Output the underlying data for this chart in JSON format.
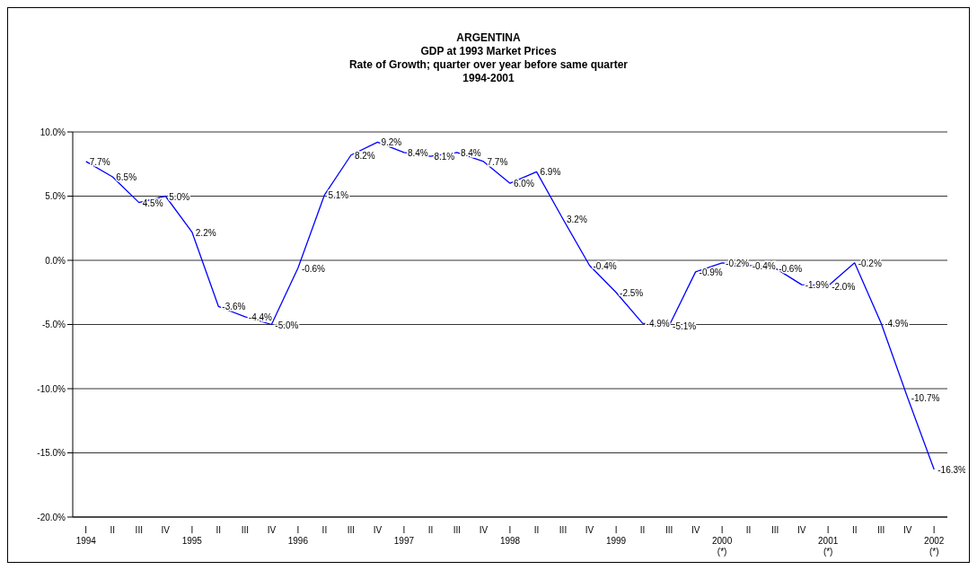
{
  "chart_data": {
    "type": "line",
    "title": "ARGENTINA\nGDP at 1993 Market Prices\nRate of Growth; quarter over year before same quarter\n1994-2001",
    "categories": [
      "I\n1994",
      "II",
      "III",
      "IV",
      "I\n1995",
      "II",
      "III",
      "IV",
      "I\n1996",
      "II",
      "III",
      "IV",
      "I\n1997",
      "II",
      "III",
      "IV",
      "I\n1998",
      "II",
      "III",
      "IV",
      "I\n1999",
      "II",
      "III",
      "IV",
      "I\n2000\n(*)",
      "II",
      "III",
      "IV",
      "I\n2001\n(*)",
      "II",
      "III",
      "IV",
      "I\n2002\n(*)"
    ],
    "series": [
      {
        "color": "#0000ff",
        "values": [
          7.7,
          6.5,
          4.5,
          5.0,
          2.2,
          -3.6,
          -4.4,
          -5.0,
          -0.6,
          5.1,
          8.2,
          9.2,
          8.4,
          8.1,
          8.4,
          7.7,
          6.0,
          6.9,
          3.2,
          -0.4,
          -2.5,
          -4.9,
          -5.1,
          -0.9,
          -0.2,
          -0.4,
          -0.6,
          -1.9,
          -2.0,
          -0.2,
          -4.9,
          -10.7,
          -16.3
        ],
        "value_labels": [
          "7.7%",
          "6.5%",
          "4.5%",
          "5.0%",
          "2.2%",
          "-3.6%",
          "-4.4%",
          "-5.0%",
          "-0.6%",
          "5.1%",
          "8.2%",
          "9.2%",
          "8.4%",
          "8.1%",
          "8.4%",
          "7.7%",
          "6.0%",
          "6.9%",
          "3.2%",
          "-0.4%",
          "-2.5%",
          "-4.9%",
          "-5.1%",
          "-0.9%",
          "-0.2%",
          "-0.4%",
          "-0.6%",
          "-1.9%",
          "-2.0%",
          "-0.2%",
          "-4.9%",
          "-10.7%",
          "-16.3%"
        ]
      }
    ],
    "ylim": [
      -20,
      10
    ],
    "yticks": [
      {
        "value": -20,
        "label": "-20.0%"
      },
      {
        "value": -15,
        "label": "-15.0%"
      },
      {
        "value": -10,
        "label": "-10.0%"
      },
      {
        "value": -5,
        "label": "-5.0%"
      },
      {
        "value": 0,
        "label": "0.0%"
      },
      {
        "value": 5,
        "label": "5.0%"
      },
      {
        "value": 10,
        "label": "10.0%"
      }
    ],
    "grid": "y",
    "marker": "none",
    "line_style": "solid"
  }
}
